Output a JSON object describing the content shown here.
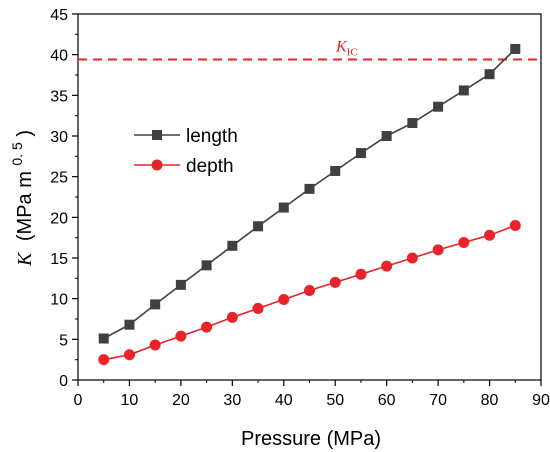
{
  "chart_data": {
    "type": "line",
    "x": [
      5,
      10,
      15,
      20,
      25,
      30,
      35,
      40,
      45,
      50,
      55,
      60,
      65,
      70,
      75,
      80,
      85
    ],
    "series": [
      {
        "name": "length",
        "color": "#404040",
        "marker": "square",
        "values": [
          5.1,
          6.8,
          9.3,
          11.7,
          14.1,
          16.5,
          18.9,
          21.2,
          23.5,
          25.7,
          27.9,
          30.0,
          31.6,
          33.6,
          35.6,
          37.6,
          40.7
        ]
      },
      {
        "name": "depth",
        "color": "#e8232a",
        "marker": "circle",
        "values": [
          2.5,
          3.1,
          4.3,
          5.4,
          6.5,
          7.7,
          8.8,
          9.9,
          11.0,
          12.0,
          13.0,
          14.0,
          15.0,
          16.0,
          16.9,
          17.8,
          19.0
        ]
      }
    ],
    "reference_line": {
      "value": 39.4,
      "label_main": "K",
      "label_sub": "IC",
      "color": "#e8232a",
      "style": "dashed"
    },
    "xlabel": "Pressure (MPa)",
    "ylabel_main": "K",
    "ylabel_unit": "(MPa  m",
    "ylabel_exp": "0. 5",
    "ylabel_close": ")",
    "xlim": [
      0,
      90
    ],
    "ylim": [
      0,
      45
    ],
    "xticks": [
      0,
      10,
      20,
      30,
      40,
      50,
      60,
      70,
      80,
      90
    ],
    "yticks": [
      0,
      5,
      10,
      15,
      20,
      25,
      30,
      35,
      40,
      45
    ],
    "legend_position": "upper-left",
    "grid": false
  }
}
